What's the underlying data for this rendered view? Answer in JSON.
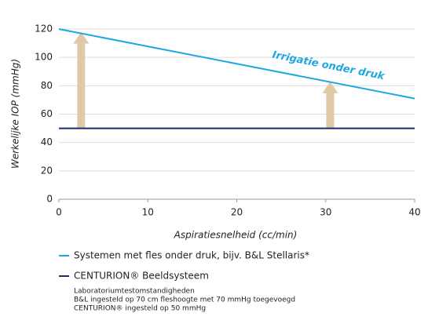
{
  "chart_data": {
    "type": "line",
    "x_label": "Aspiratiesnelheid (cc/min)",
    "y_label": "Werkelijke IOP (mmHg)",
    "x": [
      0,
      40
    ],
    "series": [
      {
        "name": "Systemen met fles onder druk, bijv. B&L Stellaris*",
        "color": "#1ea7e1",
        "values": [
          120,
          71
        ]
      },
      {
        "name": "CENTURION® Beeldsysteem",
        "color": "#1b2a78",
        "values": [
          50,
          50
        ]
      }
    ],
    "annotation": "Irrigatie onder druk",
    "arrows": [
      {
        "x": 2.5,
        "from": 50,
        "to": 118
      },
      {
        "x": 30.5,
        "from": 50,
        "to": 83
      }
    ],
    "arrow_color": "#e0c9a6",
    "xlim": [
      0,
      40
    ],
    "xticks": [
      0,
      10,
      20,
      30,
      40
    ],
    "ylim": [
      0,
      120
    ],
    "yticks": [
      0,
      20,
      40,
      60,
      80,
      100,
      120
    ],
    "grid": true,
    "notes": [
      "Laboratoriumtestomstandigheden",
      "B&L ingesteld op 70 cm fleshoogte met 70 mmHg toegevoegd",
      "CENTURION® ingesteld op 50 mmHg"
    ]
  }
}
